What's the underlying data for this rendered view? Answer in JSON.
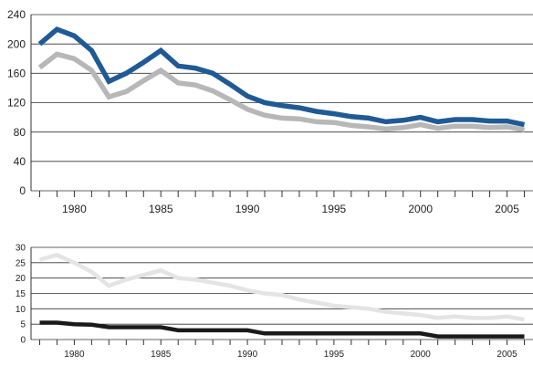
{
  "chart_data": [
    {
      "type": "line",
      "title": "",
      "xlabel": "",
      "ylabel": "",
      "x": [
        1978,
        1979,
        1980,
        1981,
        1982,
        1983,
        1984,
        1985,
        1986,
        1987,
        1988,
        1989,
        1990,
        1991,
        1992,
        1993,
        1994,
        1995,
        1996,
        1997,
        1998,
        1999,
        2000,
        2001,
        2002,
        2003,
        2004,
        2005,
        2006
      ],
      "xlim": [
        1977.5,
        2006.5
      ],
      "ylim": [
        0,
        240
      ],
      "yticks": [
        "0",
        "40",
        "80",
        "120",
        "160",
        "200",
        "240"
      ],
      "xtick_labels": [
        "1980",
        "1985",
        "1990",
        "1995",
        "2000",
        "2005"
      ],
      "grid": true,
      "series": [
        {
          "color": "#1f5a96",
          "values": [
            200,
            220,
            211,
            191,
            149,
            160,
            175,
            191,
            170,
            167,
            160,
            145,
            129,
            120,
            116,
            113,
            108,
            105,
            101,
            99,
            94,
            96,
            100,
            94,
            97,
            97,
            95,
            95,
            90
          ]
        },
        {
          "color": "#b7b7b7",
          "values": [
            168,
            186,
            180,
            164,
            128,
            135,
            150,
            164,
            147,
            144,
            136,
            124,
            111,
            103,
            99,
            98,
            94,
            93,
            89,
            87,
            84,
            86,
            90,
            85,
            88,
            88,
            86,
            87,
            83
          ]
        }
      ]
    },
    {
      "type": "line",
      "title": "",
      "xlabel": "",
      "ylabel": "",
      "x": [
        1978,
        1979,
        1980,
        1981,
        1982,
        1983,
        1984,
        1985,
        1986,
        1987,
        1988,
        1989,
        1990,
        1991,
        1992,
        1993,
        1994,
        1995,
        1996,
        1997,
        1998,
        1999,
        2000,
        2001,
        2002,
        2003,
        2004,
        2005,
        2006
      ],
      "xlim": [
        1977.5,
        2006.5
      ],
      "ylim": [
        0,
        30
      ],
      "yticks": [
        "0",
        "5",
        "10",
        "15",
        "20",
        "25",
        "30"
      ],
      "xtick_labels": [
        "1980",
        "1985",
        "1990",
        "1995",
        "2000",
        "2005"
      ],
      "grid": true,
      "series": [
        {
          "color": "#e4e4e4",
          "values": [
            26,
            27.5,
            25,
            22,
            17.5,
            19.5,
            21,
            22.5,
            20,
            19.5,
            18.5,
            17.5,
            16,
            15,
            14.5,
            13,
            12,
            11,
            10.5,
            10,
            9,
            8.5,
            8,
            7,
            7.5,
            7,
            7,
            7.5,
            6.5
          ]
        },
        {
          "color": "#1a1a1a",
          "values": [
            5.5,
            5.5,
            5,
            4.8,
            4,
            4,
            4,
            4,
            3,
            3,
            3,
            3,
            3,
            2,
            2,
            2,
            2,
            2,
            2,
            2,
            2,
            2,
            2,
            1,
            1,
            1,
            1,
            1,
            1
          ]
        }
      ]
    }
  ]
}
